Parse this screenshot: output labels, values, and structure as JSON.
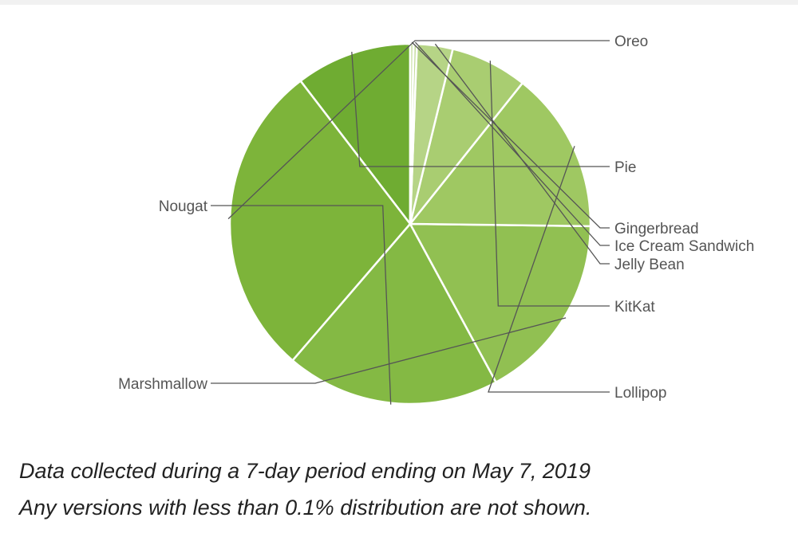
{
  "chart_data": {
    "type": "pie",
    "slices": [
      {
        "label": "Pie",
        "value": 10.4,
        "color": "#6fac32"
      },
      {
        "label": "Oreo",
        "value": 28.3,
        "color": "#7db43a"
      },
      {
        "label": "Nougat",
        "value": 19.2,
        "color": "#84b944"
      },
      {
        "label": "Marshmallow",
        "value": 16.9,
        "color": "#91c052"
      },
      {
        "label": "Lollipop",
        "value": 14.5,
        "color": "#9fc862"
      },
      {
        "label": "KitKat",
        "value": 6.9,
        "color": "#a9cd71"
      },
      {
        "label": "Jelly Bean",
        "value": 3.2,
        "color": "#b6d486"
      },
      {
        "label": "Ice Cream Sandwich",
        "value": 0.3,
        "color": "#c3dc9a"
      },
      {
        "label": "Gingerbread",
        "value": 0.3,
        "color": "#cfe4ad"
      }
    ],
    "start_angle_deg": 90,
    "direction": "counterclockwise",
    "label_color": "#555555",
    "leader_color": "#555555"
  },
  "footer": {
    "line1": "Data collected during a 7-day period ending on May 7, 2019",
    "line2": "Any versions with less than 0.1% distribution are not shown."
  }
}
